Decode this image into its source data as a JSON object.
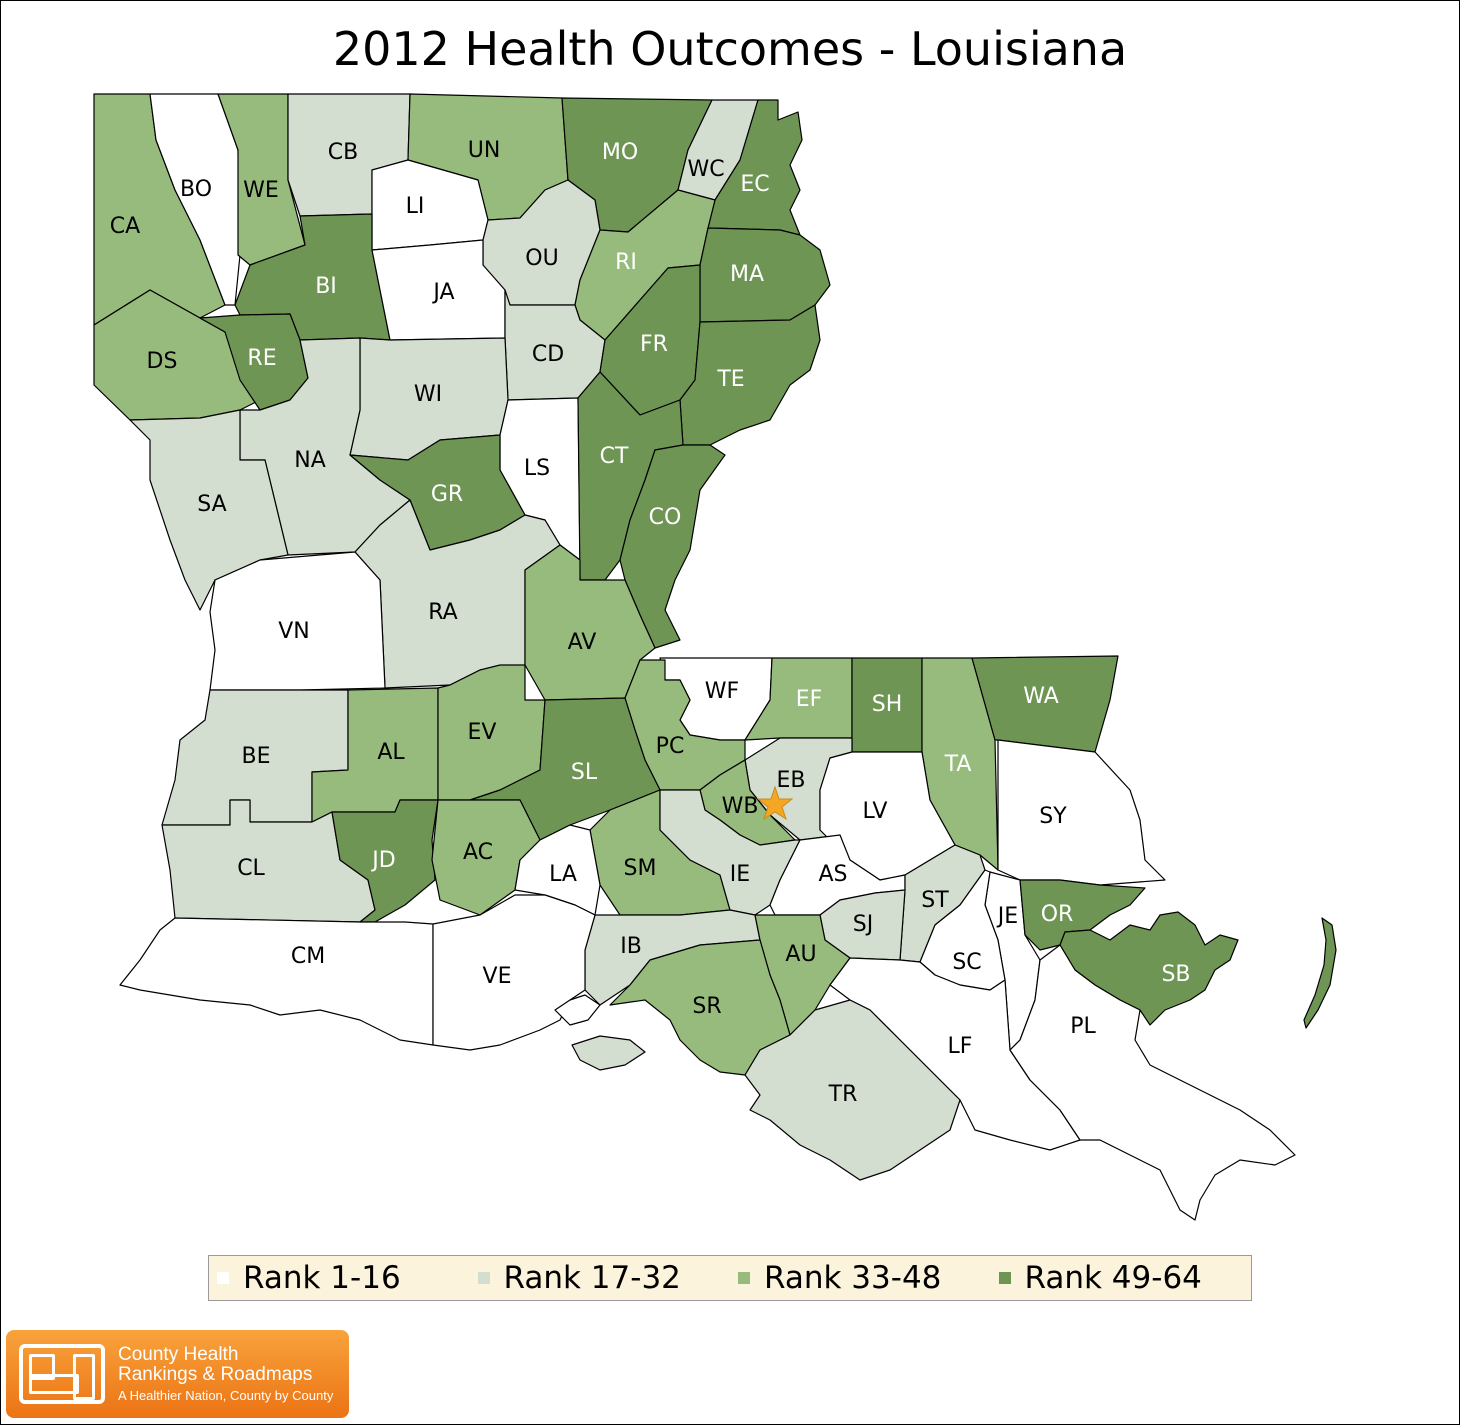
{
  "title": "2012 Health Outcomes - Louisiana",
  "colors": {
    "rank_1_16": "#ffffff",
    "rank_17_32": "#d3ddd0",
    "rank_33_48": "#97bb7c",
    "rank_49_64": "#6f9555",
    "star": "#f5a623"
  },
  "legend": [
    {
      "label": "Rank 1-16",
      "color": "#ffffff"
    },
    {
      "label": "Rank 17-32",
      "color": "#d3ddd0"
    },
    {
      "label": "Rank 33-48",
      "color": "#97bb7c"
    },
    {
      "label": "Rank 49-64",
      "color": "#6f9555"
    }
  ],
  "parishes": [
    {
      "code": "BO",
      "rank_group": "Rank 1-16"
    },
    {
      "code": "CB",
      "rank_group": "Rank 17-32"
    },
    {
      "code": "UN",
      "rank_group": "Rank 33-48"
    },
    {
      "code": "MO",
      "rank_group": "Rank 49-64"
    },
    {
      "code": "WC",
      "rank_group": "Rank 17-32"
    },
    {
      "code": "EC",
      "rank_group": "Rank 49-64"
    },
    {
      "code": "CA",
      "rank_group": "Rank 33-48"
    },
    {
      "code": "WE",
      "rank_group": "Rank 33-48"
    },
    {
      "code": "LI",
      "rank_group": "Rank 1-16"
    },
    {
      "code": "OU",
      "rank_group": "Rank 17-32"
    },
    {
      "code": "RI",
      "rank_group": "Rank 33-48"
    },
    {
      "code": "MA",
      "rank_group": "Rank 49-64"
    },
    {
      "code": "BI",
      "rank_group": "Rank 49-64"
    },
    {
      "code": "JA",
      "rank_group": "Rank 1-16"
    },
    {
      "code": "DS",
      "rank_group": "Rank 33-48"
    },
    {
      "code": "RE",
      "rank_group": "Rank 49-64"
    },
    {
      "code": "CD",
      "rank_group": "Rank 17-32"
    },
    {
      "code": "FR",
      "rank_group": "Rank 49-64"
    },
    {
      "code": "TE",
      "rank_group": "Rank 49-64"
    },
    {
      "code": "WI",
      "rank_group": "Rank 17-32"
    },
    {
      "code": "NA",
      "rank_group": "Rank 17-32"
    },
    {
      "code": "LS",
      "rank_group": "Rank 1-16"
    },
    {
      "code": "CT",
      "rank_group": "Rank 49-64"
    },
    {
      "code": "SA",
      "rank_group": "Rank 17-32"
    },
    {
      "code": "GR",
      "rank_group": "Rank 49-64"
    },
    {
      "code": "CO",
      "rank_group": "Rank 49-64"
    },
    {
      "code": "RA",
      "rank_group": "Rank 17-32"
    },
    {
      "code": "VN",
      "rank_group": "Rank 1-16"
    },
    {
      "code": "AV",
      "rank_group": "Rank 33-48"
    },
    {
      "code": "WF",
      "rank_group": "Rank 1-16"
    },
    {
      "code": "EF",
      "rank_group": "Rank 33-48"
    },
    {
      "code": "SH",
      "rank_group": "Rank 49-64"
    },
    {
      "code": "WA",
      "rank_group": "Rank 49-64"
    },
    {
      "code": "BE",
      "rank_group": "Rank 17-32"
    },
    {
      "code": "AL",
      "rank_group": "Rank 33-48"
    },
    {
      "code": "EV",
      "rank_group": "Rank 33-48"
    },
    {
      "code": "PC",
      "rank_group": "Rank 33-48"
    },
    {
      "code": "SL",
      "rank_group": "Rank 49-64"
    },
    {
      "code": "EB",
      "rank_group": "Rank 17-32"
    },
    {
      "code": "TA",
      "rank_group": "Rank 33-48"
    },
    {
      "code": "WB",
      "rank_group": "Rank 33-48"
    },
    {
      "code": "LV",
      "rank_group": "Rank 1-16"
    },
    {
      "code": "SY",
      "rank_group": "Rank 1-16"
    },
    {
      "code": "CL",
      "rank_group": "Rank 17-32"
    },
    {
      "code": "JD",
      "rank_group": "Rank 49-64"
    },
    {
      "code": "AC",
      "rank_group": "Rank 33-48"
    },
    {
      "code": "SM",
      "rank_group": "Rank 33-48"
    },
    {
      "code": "IE",
      "rank_group": "Rank 17-32"
    },
    {
      "code": "AS",
      "rank_group": "Rank 1-16"
    },
    {
      "code": "LA",
      "rank_group": "Rank 1-16"
    },
    {
      "code": "ST",
      "rank_group": "Rank 17-32"
    },
    {
      "code": "SJ",
      "rank_group": "Rank 17-32"
    },
    {
      "code": "JE",
      "rank_group": "Rank 1-16"
    },
    {
      "code": "OR",
      "rank_group": "Rank 49-64"
    },
    {
      "code": "IB",
      "rank_group": "Rank 17-32"
    },
    {
      "code": "SB",
      "rank_group": "Rank 49-64"
    },
    {
      "code": "CM",
      "rank_group": "Rank 1-16"
    },
    {
      "code": "VE",
      "rank_group": "Rank 1-16"
    },
    {
      "code": "AU",
      "rank_group": "Rank 33-48"
    },
    {
      "code": "SC",
      "rank_group": "Rank 1-16"
    },
    {
      "code": "SR",
      "rank_group": "Rank 33-48"
    },
    {
      "code": "LF",
      "rank_group": "Rank 1-16"
    },
    {
      "code": "PL",
      "rank_group": "Rank 1-16"
    },
    {
      "code": "TR",
      "rank_group": "Rank 17-32"
    }
  ],
  "logo": {
    "line1": "County Health",
    "line2": "Rankings & Roadmaps",
    "tagline": "A Healthier Nation, County by County"
  }
}
